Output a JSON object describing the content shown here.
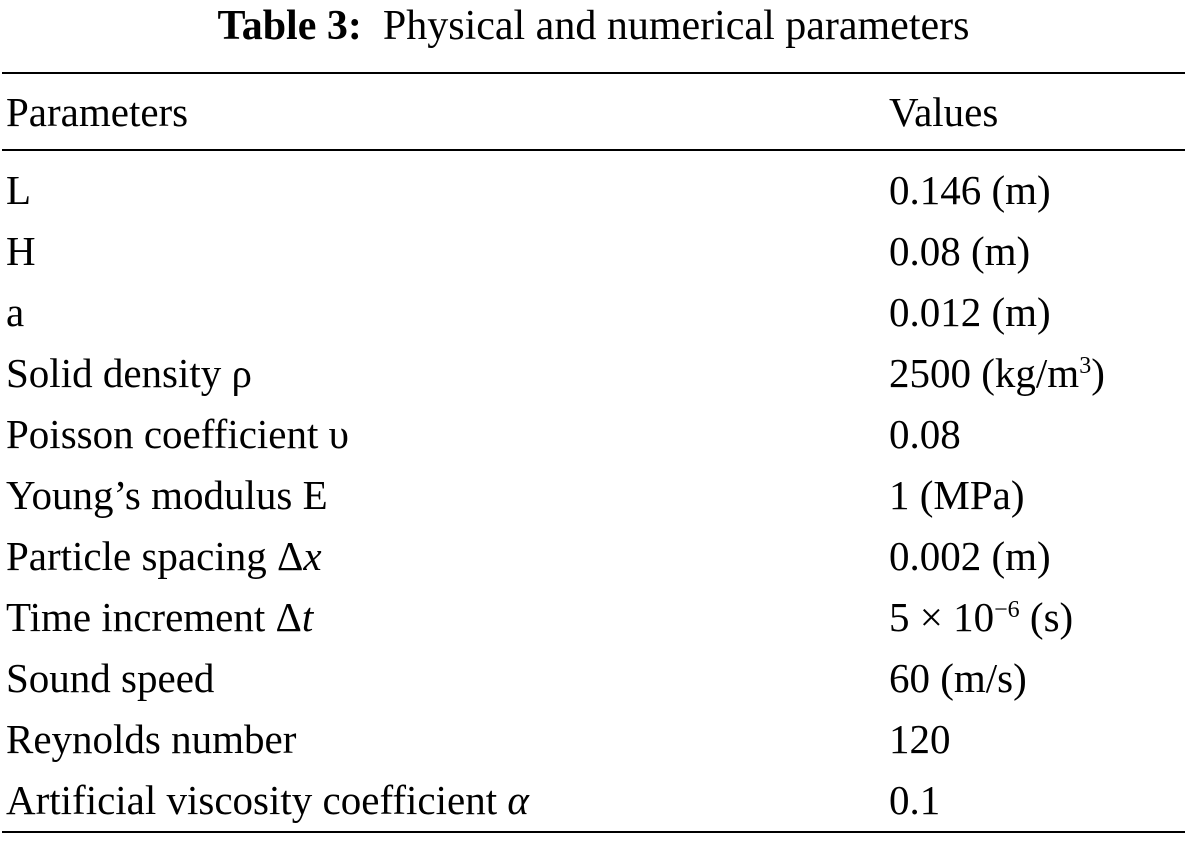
{
  "caption": {
    "label": "Table 3:",
    "title": "Physical and numerical parameters"
  },
  "table": {
    "headers": {
      "parameter": "Parameters",
      "value": "Values"
    },
    "rows": [
      {
        "param": "L",
        "value": "0.146 (m)"
      },
      {
        "param": "H",
        "value": "0.08 (m)"
      },
      {
        "param": "a",
        "value": "0.012 (m)"
      },
      {
        "param": "Solid density ρ",
        "value_main": "2500 (kg/m",
        "value_sup": "3",
        "value_end": ")"
      },
      {
        "param": "Poisson coefficient υ",
        "value": "0.08"
      },
      {
        "param": "Young’s modulus E",
        "value": "1 (MPa)"
      },
      {
        "param_main": "Particle spacing Δ",
        "param_ital": "x",
        "value": "0.002 (m)"
      },
      {
        "param_main": "Time increment Δ",
        "param_ital": "t",
        "value_main": "5 × 10",
        "value_sup": "−6",
        "value_end": " (s)"
      },
      {
        "param": "Sound speed",
        "value": "60 (m/s)"
      },
      {
        "param": "Reynolds number",
        "value": "120"
      },
      {
        "param_main": "Artificial viscosity coefficient ",
        "param_ital": "α",
        "value": "0.1"
      }
    ]
  }
}
